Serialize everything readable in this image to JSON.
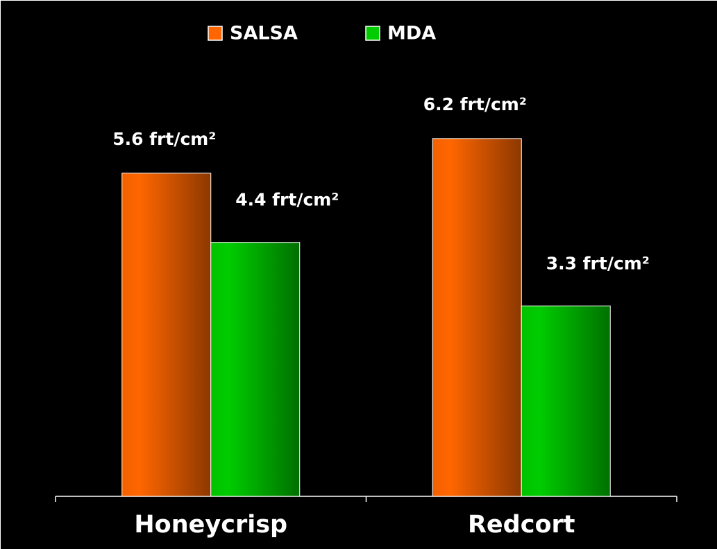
{
  "chart_data": {
    "type": "bar",
    "categories": [
      "Honeycrisp",
      "Redcort"
    ],
    "series": [
      {
        "name": "SALSA",
        "color": "#ff6600",
        "values": [
          5.6,
          6.2
        ],
        "value_labels": [
          "5.6 frt/cm²",
          "6.2 frt/cm²"
        ]
      },
      {
        "name": "MDA",
        "color": "#00cc00",
        "values": [
          4.4,
          3.3
        ],
        "value_labels": [
          "4.4 frt/cm²",
          "3.3 frt/cm²"
        ]
      }
    ],
    "ylim": [
      0,
      8
    ]
  }
}
